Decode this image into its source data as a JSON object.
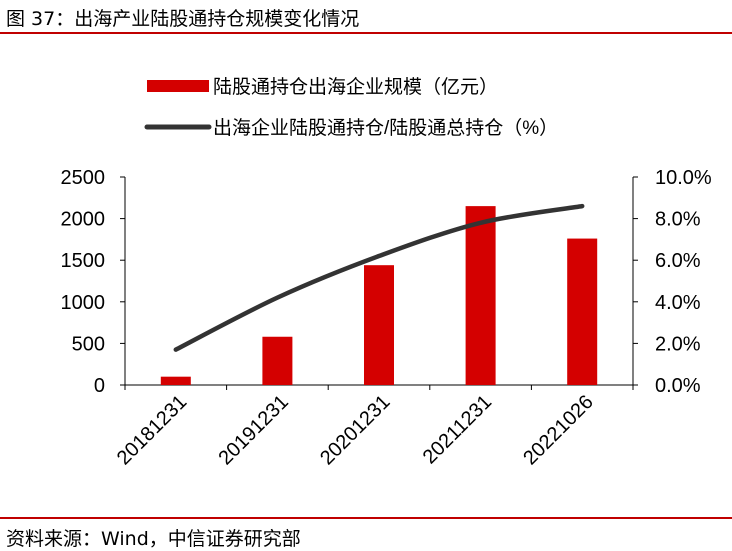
{
  "header": {
    "title": "图 37：出海产业陆股通持仓规模变化情况"
  },
  "footer": {
    "source": "资料来源：Wind，中信证券研究部"
  },
  "colors": {
    "bar": "#d40000",
    "line": "#333333",
    "rule": "#c00000"
  },
  "chart_data": {
    "type": "bar",
    "categories": [
      "20181231",
      "20191231",
      "20201231",
      "20211231",
      "20221026"
    ],
    "series": [
      {
        "name": "陆股通持仓出海企业规模（亿元）",
        "type": "bar",
        "axis": "left",
        "values": [
          100,
          580,
          1440,
          2150,
          1760
        ]
      },
      {
        "name": "出海企业陆股通持仓/陆股通总持仓（%）",
        "type": "line",
        "axis": "right",
        "values": [
          1.7,
          4.2,
          6.2,
          7.8,
          8.6
        ]
      }
    ],
    "y_left": {
      "min": 0,
      "max": 2500,
      "ticks": [
        "0",
        "500",
        "1000",
        "1500",
        "2000",
        "2500"
      ]
    },
    "y_right": {
      "min": 0,
      "max": 10,
      "ticks": [
        "0.0%",
        "2.0%",
        "4.0%",
        "6.0%",
        "8.0%",
        "10.0%"
      ]
    },
    "legend_position": "top",
    "grid": false
  }
}
